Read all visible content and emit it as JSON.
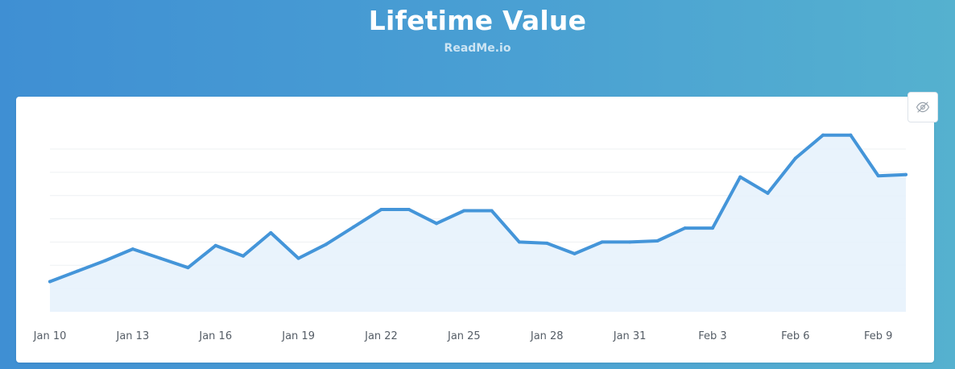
{
  "header": {
    "title": "Lifetime Value",
    "subtitle": "ReadMe.io"
  },
  "toggle": {
    "icon": "eye-off-icon"
  },
  "colors": {
    "line": "#4495d9",
    "fill": "#e5f1fb",
    "grid": "#eef0f3"
  },
  "chart_data": {
    "type": "area",
    "title": "Lifetime Value",
    "subtitle": "ReadMe.io",
    "xlabel": "",
    "ylabel": "",
    "ylim": [
      0,
      7
    ],
    "grid": true,
    "y_gridlines": [
      1,
      2,
      3,
      4,
      5,
      6,
      7
    ],
    "x_tick_labels": [
      "Jan 10",
      "Jan 13",
      "Jan 16",
      "Jan 19",
      "Jan 22",
      "Jan 25",
      "Jan 28",
      "Jan 31",
      "Feb 3",
      "Feb 6",
      "Feb 9"
    ],
    "x_tick_index": [
      0,
      3,
      6,
      9,
      12,
      15,
      18,
      21,
      24,
      27,
      30
    ],
    "x": [
      "Jan 10",
      "Jan 11",
      "Jan 12",
      "Jan 13",
      "Jan 14",
      "Jan 15",
      "Jan 16",
      "Jan 17",
      "Jan 18",
      "Jan 19",
      "Jan 20",
      "Jan 21",
      "Jan 22",
      "Jan 23",
      "Jan 24",
      "Jan 25",
      "Jan 26",
      "Jan 27",
      "Jan 28",
      "Jan 29",
      "Jan 30",
      "Jan 31",
      "Feb 1",
      "Feb 2",
      "Feb 3",
      "Feb 4",
      "Feb 5",
      "Feb 6",
      "Feb 7",
      "Feb 8",
      "Feb 9",
      "Feb 10"
    ],
    "series": [
      {
        "values": [
          1.3,
          1.75,
          2.2,
          2.7,
          2.3,
          1.9,
          2.85,
          2.4,
          3.4,
          2.3,
          2.9,
          3.65,
          4.4,
          4.4,
          3.8,
          4.35,
          4.35,
          3.0,
          2.95,
          2.5,
          3.0,
          3.0,
          3.05,
          3.6,
          3.6,
          5.8,
          5.1,
          6.6,
          7.6,
          7.6,
          5.85,
          5.9
        ]
      }
    ]
  }
}
